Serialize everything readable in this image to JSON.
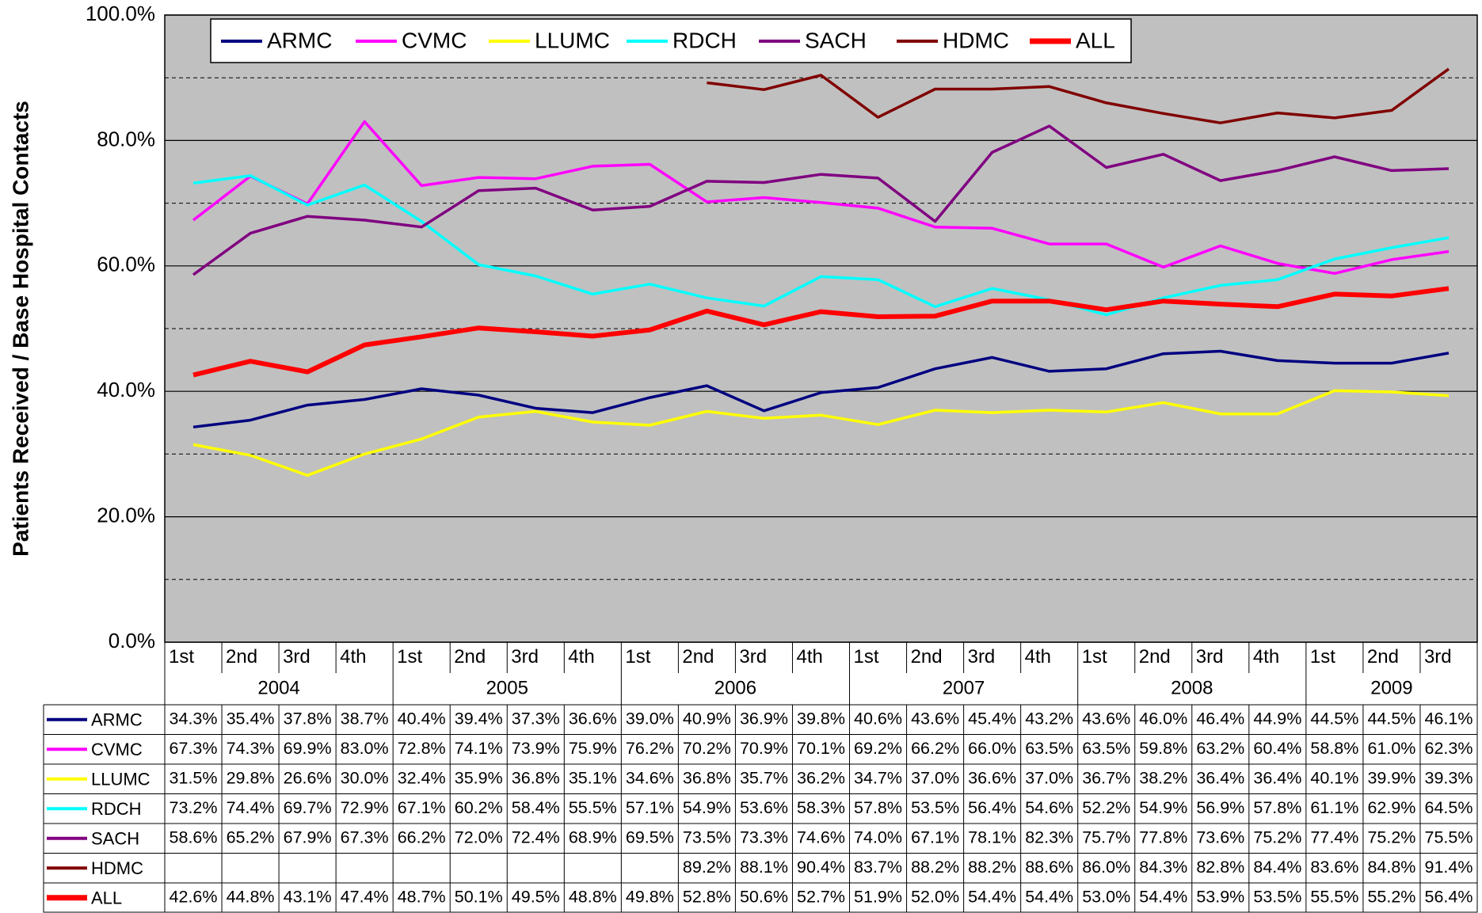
{
  "chart_data": {
    "type": "line",
    "y_label": "Patients Received / Base Hospital Contacts",
    "groups": [
      {
        "year": "2004",
        "quarters": [
          "1st",
          "2nd",
          "3rd",
          "4th"
        ]
      },
      {
        "year": "2005",
        "quarters": [
          "1st",
          "2nd",
          "3rd",
          "4th"
        ]
      },
      {
        "year": "2006",
        "quarters": [
          "1st",
          "2nd",
          "3rd",
          "4th"
        ]
      },
      {
        "year": "2007",
        "quarters": [
          "1st",
          "2nd",
          "3rd",
          "4th"
        ]
      },
      {
        "year": "2008",
        "quarters": [
          "1st",
          "2nd",
          "3rd",
          "4th"
        ]
      },
      {
        "year": "2009",
        "quarters": [
          "1st",
          "2nd",
          "3rd"
        ]
      }
    ],
    "ylim": [
      0,
      100
    ],
    "yticks": [
      {
        "value": 0,
        "label": "0.0%"
      },
      {
        "value": 20,
        "label": "20.0%"
      },
      {
        "value": 40,
        "label": "40.0%"
      },
      {
        "value": 60,
        "label": "60.0%"
      },
      {
        "value": 80,
        "label": "80.0%"
      },
      {
        "value": 100,
        "label": "100.0%"
      }
    ],
    "minor_grid": [
      10,
      30,
      50,
      70,
      90
    ],
    "grid": true,
    "legend": "top",
    "series": [
      {
        "name": "ARMC",
        "color": "#000080",
        "values": [
          34.3,
          35.4,
          37.8,
          38.7,
          40.4,
          39.4,
          37.3,
          36.6,
          39.0,
          40.9,
          36.9,
          39.8,
          40.6,
          43.6,
          45.4,
          43.2,
          43.6,
          46.0,
          46.4,
          44.9,
          44.5,
          44.5,
          46.1
        ],
        "value_labels": [
          "34.3%",
          "35.4%",
          "37.8%",
          "38.7%",
          "40.4%",
          "39.4%",
          "37.3%",
          "36.6%",
          "39.0%",
          "40.9%",
          "36.9%",
          "39.8%",
          "40.6%",
          "43.6%",
          "45.4%",
          "43.2%",
          "43.6%",
          "46.0%",
          "46.4%",
          "44.9%",
          "44.5%",
          "44.5%",
          "46.1%"
        ]
      },
      {
        "name": "CVMC",
        "color": "#ff00ff",
        "values": [
          67.3,
          74.3,
          69.9,
          83.0,
          72.8,
          74.1,
          73.9,
          75.9,
          76.2,
          70.2,
          70.9,
          70.1,
          69.2,
          66.2,
          66.0,
          63.5,
          63.5,
          59.8,
          63.2,
          60.4,
          58.8,
          61.0,
          62.3
        ],
        "value_labels": [
          "67.3%",
          "74.3%",
          "69.9%",
          "83.0%",
          "72.8%",
          "74.1%",
          "73.9%",
          "75.9%",
          "76.2%",
          "70.2%",
          "70.9%",
          "70.1%",
          "69.2%",
          "66.2%",
          "66.0%",
          "63.5%",
          "63.5%",
          "59.8%",
          "63.2%",
          "60.4%",
          "58.8%",
          "61.0%",
          "62.3%"
        ]
      },
      {
        "name": "LLUMC",
        "color": "#ffff00",
        "values": [
          31.5,
          29.8,
          26.6,
          30.0,
          32.4,
          35.9,
          36.8,
          35.1,
          34.6,
          36.8,
          35.7,
          36.2,
          34.7,
          37.0,
          36.6,
          37.0,
          36.7,
          38.2,
          36.4,
          36.4,
          40.1,
          39.9,
          39.3
        ],
        "value_labels": [
          "31.5%",
          "29.8%",
          "26.6%",
          "30.0%",
          "32.4%",
          "35.9%",
          "36.8%",
          "35.1%",
          "34.6%",
          "36.8%",
          "35.7%",
          "36.2%",
          "34.7%",
          "37.0%",
          "36.6%",
          "37.0%",
          "36.7%",
          "38.2%",
          "36.4%",
          "36.4%",
          "40.1%",
          "39.9%",
          "39.3%"
        ]
      },
      {
        "name": "RDCH",
        "color": "#00ffff",
        "values": [
          73.2,
          74.4,
          69.7,
          72.9,
          67.1,
          60.2,
          58.4,
          55.5,
          57.1,
          54.9,
          53.6,
          58.3,
          57.8,
          53.5,
          56.4,
          54.6,
          52.2,
          54.9,
          56.9,
          57.8,
          61.1,
          62.9,
          64.5
        ],
        "value_labels": [
          "73.2%",
          "74.4%",
          "69.7%",
          "72.9%",
          "67.1%",
          "60.2%",
          "58.4%",
          "55.5%",
          "57.1%",
          "54.9%",
          "53.6%",
          "58.3%",
          "57.8%",
          "53.5%",
          "56.4%",
          "54.6%",
          "52.2%",
          "54.9%",
          "56.9%",
          "57.8%",
          "61.1%",
          "62.9%",
          "64.5%"
        ]
      },
      {
        "name": "SACH",
        "color": "#800080",
        "values": [
          58.6,
          65.2,
          67.9,
          67.3,
          66.2,
          72.0,
          72.4,
          68.9,
          69.5,
          73.5,
          73.3,
          74.6,
          74.0,
          67.1,
          78.1,
          82.3,
          75.7,
          77.8,
          73.6,
          75.2,
          77.4,
          75.2,
          75.5
        ],
        "value_labels": [
          "58.6%",
          "65.2%",
          "67.9%",
          "67.3%",
          "66.2%",
          "72.0%",
          "72.4%",
          "68.9%",
          "69.5%",
          "73.5%",
          "73.3%",
          "74.6%",
          "74.0%",
          "67.1%",
          "78.1%",
          "82.3%",
          "75.7%",
          "77.8%",
          "73.6%",
          "75.2%",
          "77.4%",
          "75.2%",
          "75.5%"
        ]
      },
      {
        "name": "HDMC",
        "color": "#800000",
        "values": [
          null,
          null,
          null,
          null,
          null,
          null,
          null,
          null,
          null,
          89.2,
          88.1,
          90.4,
          83.7,
          88.2,
          88.2,
          88.6,
          86.0,
          84.3,
          82.8,
          84.4,
          83.6,
          84.8,
          91.4
        ],
        "value_labels": [
          null,
          null,
          null,
          null,
          null,
          null,
          null,
          null,
          null,
          "89.2%",
          "88.1%",
          "90.4%",
          "83.7%",
          "88.2%",
          "88.2%",
          "88.6%",
          "86.0%",
          "84.3%",
          "82.8%",
          "84.4%",
          "83.6%",
          "84.8%",
          "91.4%"
        ]
      },
      {
        "name": "ALL",
        "color": "#ff0000",
        "bold": true,
        "values": [
          42.6,
          44.8,
          43.1,
          47.4,
          48.7,
          50.1,
          49.5,
          48.8,
          49.8,
          52.8,
          50.6,
          52.7,
          51.9,
          52.0,
          54.4,
          54.4,
          53.0,
          54.4,
          53.9,
          53.5,
          55.5,
          55.2,
          56.4
        ],
        "value_labels": [
          "42.6%",
          "44.8%",
          "43.1%",
          "47.4%",
          "48.7%",
          "50.1%",
          "49.5%",
          "48.8%",
          "49.8%",
          "52.8%",
          "50.6%",
          "52.7%",
          "51.9%",
          "52.0%",
          "54.4%",
          "54.4%",
          "53.0%",
          "54.4%",
          "53.9%",
          "53.5%",
          "55.5%",
          "55.2%",
          "56.4%"
        ]
      }
    ]
  }
}
